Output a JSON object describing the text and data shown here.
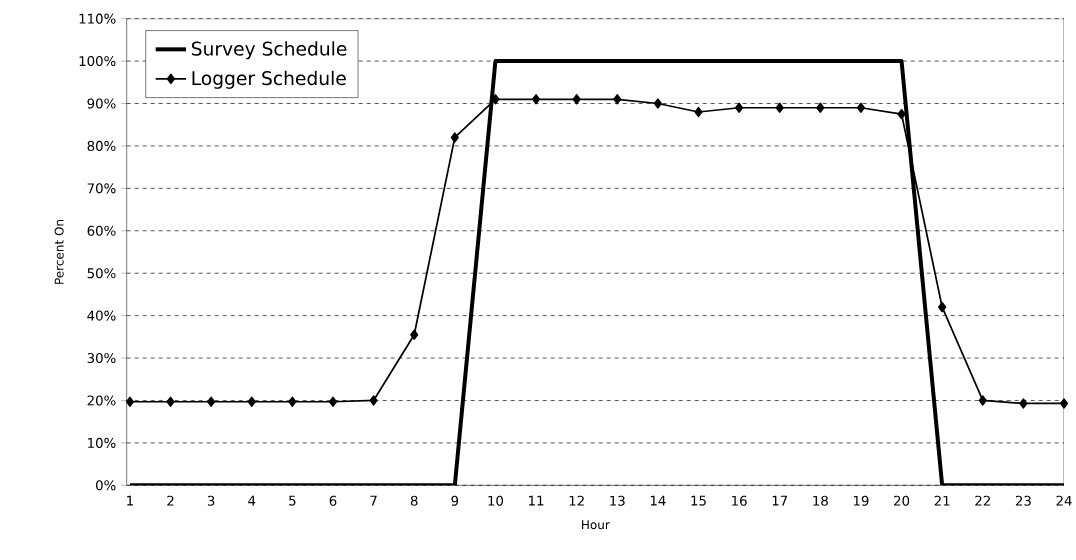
{
  "chart_data": {
    "type": "line",
    "xlabel": "Hour",
    "ylabel": "Percent On",
    "categories": [
      "1",
      "2",
      "3",
      "4",
      "5",
      "6",
      "7",
      "8",
      "9",
      "10",
      "11",
      "12",
      "13",
      "14",
      "15",
      "16",
      "17",
      "18",
      "19",
      "20",
      "21",
      "22",
      "23",
      "24"
    ],
    "series": [
      {
        "name": "Survey Schedule",
        "color": "#000000",
        "marker": "none",
        "values": [
          0,
          0,
          0,
          0,
          0,
          0,
          0,
          0,
          0,
          100,
          100,
          100,
          100,
          100,
          100,
          100,
          100,
          100,
          100,
          100,
          0,
          0,
          0,
          0
        ]
      },
      {
        "name": "Logger Schedule",
        "color": "#000000",
        "marker": "diamond",
        "values": [
          19.7,
          19.7,
          19.7,
          19.7,
          19.7,
          19.7,
          20,
          35.5,
          82,
          91,
          91,
          91,
          91,
          90,
          88,
          89,
          89,
          89,
          89,
          87.5,
          42,
          20,
          19.3,
          19.3
        ]
      }
    ],
    "ylim": [
      0,
      110
    ],
    "yticks": [
      {
        "value": 0,
        "label": "0%"
      },
      {
        "value": 10,
        "label": "10%"
      },
      {
        "value": 20,
        "label": "20%"
      },
      {
        "value": 30,
        "label": "30%"
      },
      {
        "value": 40,
        "label": "40%"
      },
      {
        "value": 50,
        "label": "50%"
      },
      {
        "value": 60,
        "label": "60%"
      },
      {
        "value": 70,
        "label": "70%"
      },
      {
        "value": 80,
        "label": "80%"
      },
      {
        "value": 90,
        "label": "90%"
      },
      {
        "value": 100,
        "label": "100%"
      },
      {
        "value": 110,
        "label": "110%"
      }
    ],
    "grid": "y",
    "legend": "top left"
  }
}
